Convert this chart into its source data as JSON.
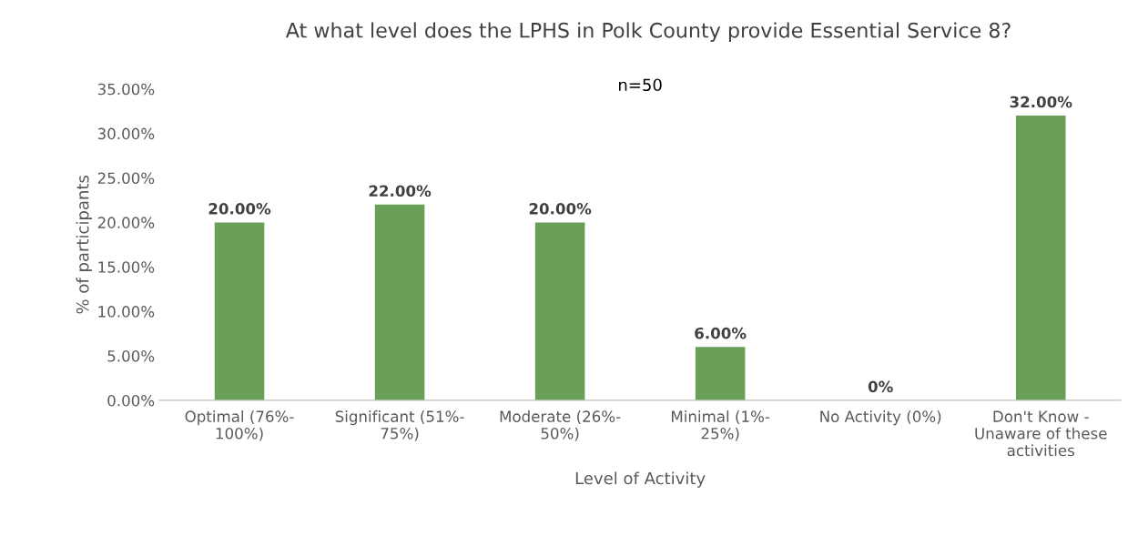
{
  "chart_data": {
    "type": "bar",
    "title": "At what level does the LPHS in Polk County provide Essential Service 8?",
    "subtitle": "n=50",
    "xlabel": "Level of Activity",
    "ylabel": "% of participants",
    "categories": [
      "Optimal (76%-\n100%)",
      "Significant (51%-\n75%)",
      "Moderate (26%-\n50%)",
      "Minimal (1%-\n25%)",
      "No Activity (0%)",
      "Don't Know -\nUnaware of these\nactivities"
    ],
    "values": [
      20,
      22,
      20,
      6,
      0,
      32
    ],
    "value_labels": [
      "20.00%",
      "22.00%",
      "20.00%",
      "6.00%",
      "0%",
      "32.00%"
    ],
    "color": "#6a9f58",
    "ylim": [
      0,
      35
    ],
    "yticks": [
      {
        "value": 0,
        "label": "0.00%"
      },
      {
        "value": 5,
        "label": "5.00%"
      },
      {
        "value": 10,
        "label": "10.00%"
      },
      {
        "value": 15,
        "label": "15.00%"
      },
      {
        "value": 20,
        "label": "20.00%"
      },
      {
        "value": 25,
        "label": "25.00%"
      },
      {
        "value": 30,
        "label": "30.00%"
      },
      {
        "value": 35,
        "label": "35.00%"
      }
    ],
    "grid": false,
    "legend": false
  }
}
